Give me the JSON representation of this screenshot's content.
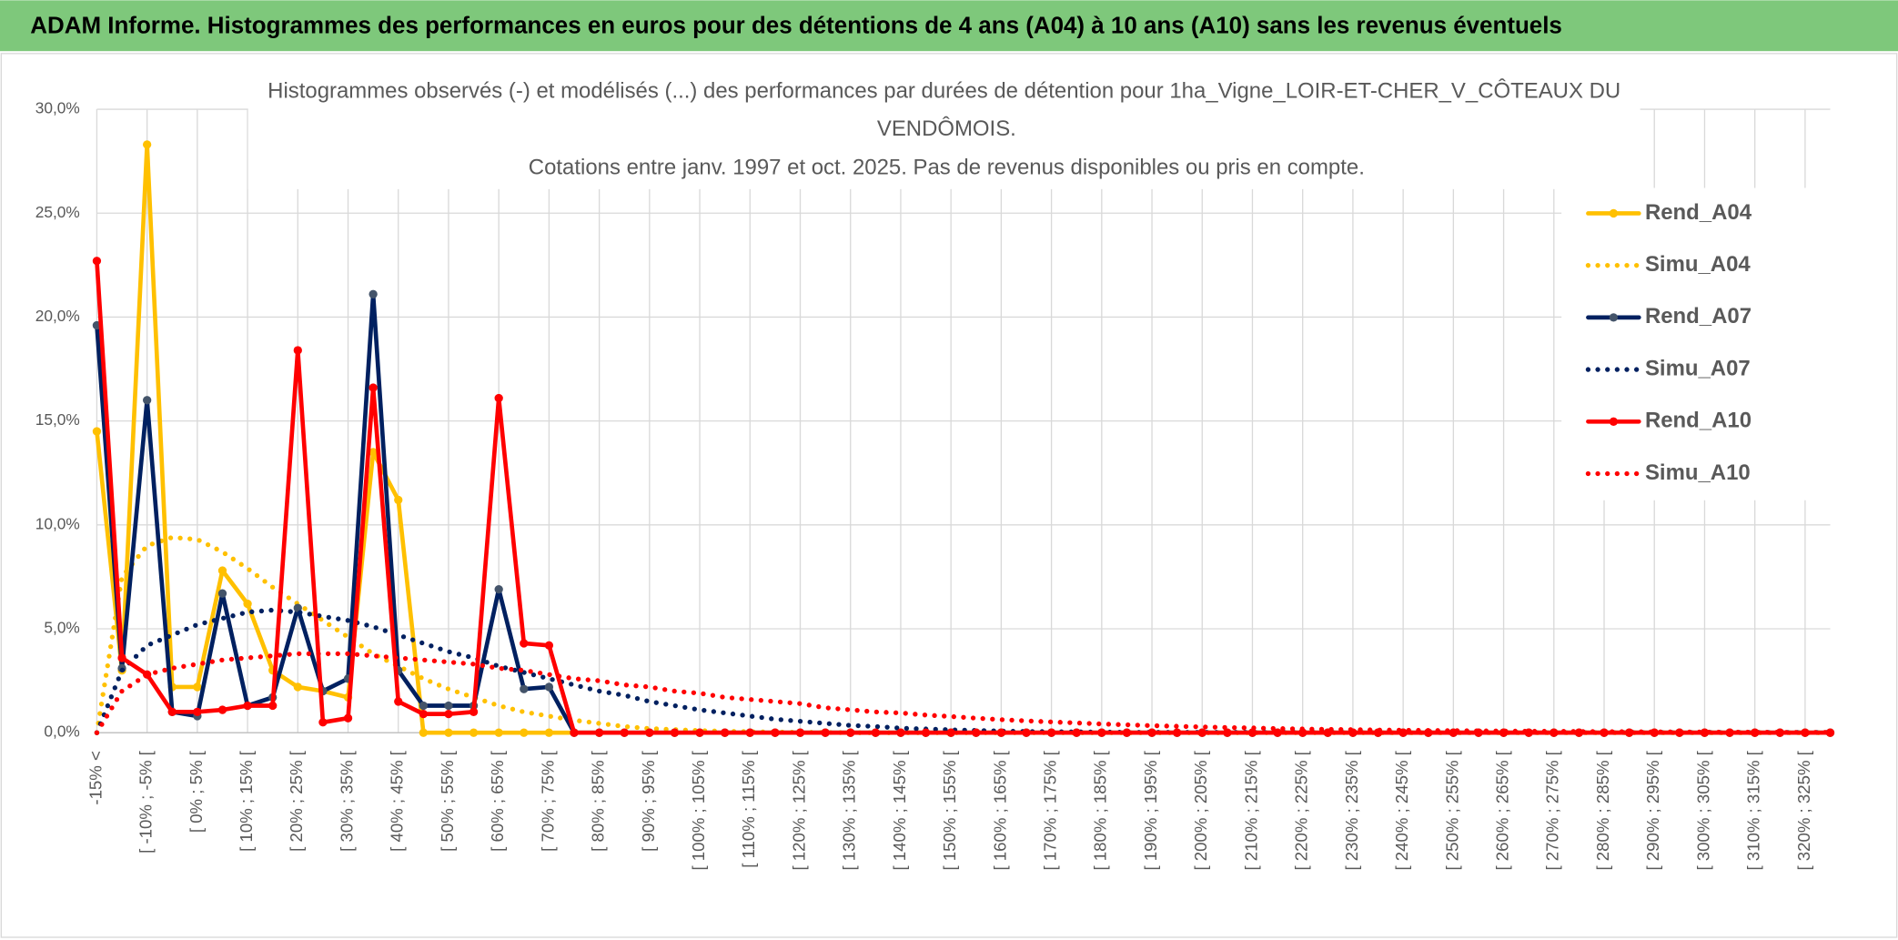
{
  "chart_data": {
    "type": "line",
    "header": "ADAM Informe. Histogrammes des performances en euros pour des détentions de 4 ans (A04) à 10 ans (A10) sans les revenus éventuels",
    "title": [
      "Histogrammes observés (-) et modélisés (...) des performances par durées de détention pour 1ha_Vigne_LOIR-ET-CHER_V_CÔTEAUX DU",
      "VENDÔMOIS.",
      "Cotations entre janv. 1997 et oct. 2025. Pas de revenus disponibles ou pris en compte."
    ],
    "categories": [
      "-15% <",
      null,
      "[ -10% ; -5% [",
      null,
      "[ 0% ; 5% [",
      null,
      "[ 10% ; 15% [",
      null,
      "[ 20% ; 25% [",
      null,
      "[ 30% ; 35% [",
      null,
      "[ 40% ; 45% [",
      null,
      "[ 50% ; 55% [",
      null,
      "[ 60% ; 65% [",
      null,
      "[ 70% ; 75% [",
      null,
      "[ 80% ; 85% [",
      null,
      "[ 90% ; 95% [",
      null,
      "[ 100% ; 105% [",
      null,
      "[ 110% ; 115% [",
      null,
      "[ 120% ; 125% [",
      null,
      "[ 130% ; 135% [",
      null,
      "[ 140% ; 145% [",
      null,
      "[ 150% ; 155% [",
      null,
      "[ 160% ; 165% [",
      null,
      "[ 170% ; 175% [",
      null,
      "[ 180% ; 185% [",
      null,
      "[ 190% ; 195% [",
      null,
      "[ 200% ; 205% [",
      null,
      "[ 210% ; 215% [",
      null,
      "[ 220% ; 225% [",
      null,
      "[ 230% ; 235% [",
      null,
      "[ 240% ; 245% [",
      null,
      "[ 250% ; 255% [",
      null,
      "[ 260% ; 265% [",
      null,
      "[ 270% ; 275% [",
      null,
      "[ 280% ; 285% [",
      null,
      "[ 290% ; 295% [",
      null,
      "[ 300% ; 305% [",
      null,
      "[ 310% ; 315% [",
      null,
      "[ 320% ; 325% [",
      null
    ],
    "ylim": [
      0,
      30
    ],
    "yticks": [
      {
        "value": 0,
        "label": "0,0%"
      },
      {
        "value": 5,
        "label": "5,0%"
      },
      {
        "value": 10,
        "label": "10,0%"
      },
      {
        "value": 15,
        "label": "15,0%"
      },
      {
        "value": 20,
        "label": "20,0%"
      },
      {
        "value": 25,
        "label": "25,0%"
      },
      {
        "value": 30,
        "label": "30,0%"
      }
    ],
    "grid": true,
    "legend": "right",
    "series": [
      {
        "name": "Rend_A04",
        "color": "#ffc000",
        "style": "solid",
        "values": [
          14.5,
          3.0,
          28.3,
          2.2,
          2.2,
          7.8,
          6.2,
          3.0,
          2.2,
          2.0,
          1.7,
          13.5,
          11.2,
          0,
          0,
          0,
          0,
          0,
          0,
          0,
          0,
          0,
          0,
          0,
          0,
          0,
          0,
          0,
          0,
          0,
          0,
          0,
          0,
          0,
          0,
          0,
          0,
          0,
          0,
          0,
          0,
          0,
          0,
          0,
          0,
          0,
          0,
          0,
          0,
          0,
          0,
          0,
          0,
          0,
          0,
          0,
          0,
          0,
          0,
          0,
          0,
          0,
          0,
          0,
          0,
          0,
          0,
          0,
          0,
          0
        ]
      },
      {
        "name": "Simu_A04",
        "color": "#ffc000",
        "style": "dotted",
        "values": [
          0,
          7.5,
          9.0,
          9.4,
          9.3,
          8.7,
          7.9,
          7.0,
          6.2,
          5.4,
          4.6,
          3.8,
          3.2,
          2.6,
          2.1,
          1.7,
          1.3,
          1.0,
          0.8,
          0.6,
          0.45,
          0.3,
          0.2,
          0.15,
          0.1,
          0.07,
          0.05,
          0.03,
          0.02,
          0.01,
          0,
          0,
          0,
          0,
          0,
          0,
          0,
          0,
          0,
          0,
          0,
          0,
          0,
          0,
          0,
          0,
          0,
          0,
          0,
          0,
          0,
          0,
          0,
          0,
          0,
          0,
          0,
          0,
          0,
          0,
          0,
          0,
          0,
          0,
          0,
          0,
          0,
          0,
          0,
          0
        ]
      },
      {
        "name": "Rend_A07",
        "color": "#002060",
        "style": "solid",
        "values": [
          19.6,
          3.1,
          16.0,
          1.0,
          0.8,
          6.7,
          1.3,
          1.7,
          6.0,
          2.0,
          2.6,
          21.1,
          3.0,
          1.3,
          1.3,
          1.3,
          6.9,
          2.1,
          2.2,
          0,
          0,
          0,
          0,
          0,
          0,
          0,
          0,
          0,
          0,
          0,
          0,
          0,
          0,
          0,
          0,
          0,
          0,
          0,
          0,
          0,
          0,
          0,
          0,
          0,
          0,
          0,
          0,
          0,
          0,
          0,
          0,
          0,
          0,
          0,
          0,
          0,
          0,
          0,
          0,
          0,
          0,
          0,
          0,
          0,
          0,
          0,
          0,
          0,
          0,
          0
        ]
      },
      {
        "name": "Simu_A07",
        "color": "#002060",
        "style": "dotted",
        "values": [
          0,
          3.0,
          4.2,
          4.7,
          5.2,
          5.5,
          5.8,
          5.9,
          5.8,
          5.6,
          5.4,
          5.1,
          4.7,
          4.3,
          3.9,
          3.6,
          3.2,
          2.9,
          2.6,
          2.3,
          2.0,
          1.8,
          1.5,
          1.3,
          1.1,
          0.95,
          0.8,
          0.65,
          0.55,
          0.45,
          0.35,
          0.3,
          0.22,
          0.18,
          0.14,
          0.11,
          0.08,
          0.06,
          0.05,
          0.04,
          0.03,
          0.02,
          0.02,
          0.02,
          0.02,
          0.02,
          0.02,
          0.02,
          0.02,
          0.02,
          0.02,
          0.01,
          0.01,
          0.01,
          0.01,
          0.01,
          0.01,
          0.01,
          0.01,
          0.01,
          0.01,
          0.01,
          0.01,
          0.01,
          0.01,
          0.01,
          0.01,
          0.01,
          0.01,
          0.01
        ]
      },
      {
        "name": "Rend_A10",
        "color": "#ff0000",
        "style": "solid",
        "values": [
          22.7,
          3.6,
          2.8,
          1.0,
          1.0,
          1.1,
          1.3,
          1.3,
          18.4,
          0.5,
          0.7,
          16.6,
          1.5,
          0.9,
          0.9,
          1.0,
          16.1,
          4.3,
          4.2,
          0,
          0,
          0,
          0,
          0,
          0,
          0,
          0,
          0,
          0,
          0,
          0,
          0,
          0,
          0,
          0,
          0,
          0,
          0,
          0,
          0,
          0,
          0,
          0,
          0,
          0,
          0,
          0,
          0,
          0,
          0,
          0,
          0,
          0,
          0,
          0,
          0,
          0,
          0,
          0,
          0,
          0,
          0,
          0,
          0,
          0,
          0,
          0,
          0,
          0,
          0
        ]
      },
      {
        "name": "Simu_A10",
        "color": "#ff0000",
        "style": "dotted",
        "values": [
          0,
          2.0,
          2.8,
          3.1,
          3.3,
          3.5,
          3.6,
          3.7,
          3.8,
          3.8,
          3.8,
          3.7,
          3.6,
          3.5,
          3.4,
          3.3,
          3.1,
          3.0,
          2.8,
          2.6,
          2.5,
          2.3,
          2.2,
          2.0,
          1.9,
          1.7,
          1.6,
          1.5,
          1.4,
          1.2,
          1.1,
          1.0,
          0.95,
          0.85,
          0.78,
          0.7,
          0.63,
          0.57,
          0.52,
          0.47,
          0.42,
          0.38,
          0.34,
          0.31,
          0.28,
          0.25,
          0.23,
          0.2,
          0.18,
          0.16,
          0.15,
          0.13,
          0.12,
          0.11,
          0.1,
          0.09,
          0.08,
          0.07,
          0.07,
          0.06,
          0.05,
          0.05,
          0.04,
          0.04,
          0.03,
          0.03,
          0.03,
          0.02,
          0.02,
          0.02
        ]
      }
    ]
  }
}
